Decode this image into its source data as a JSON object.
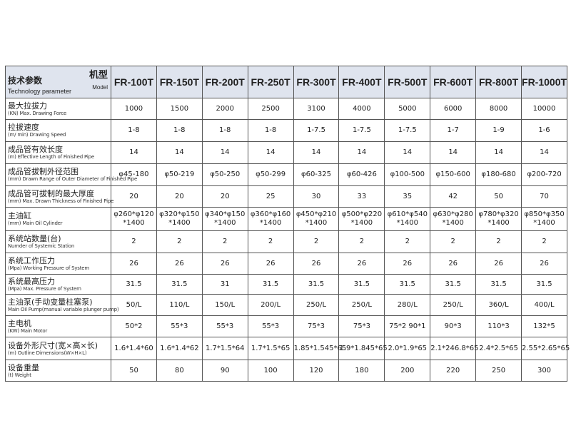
{
  "header": {
    "param_label": "技术参数",
    "param_label_en": "Technology parameter",
    "model_label": "机型",
    "model_label_en": "Model",
    "models": [
      "FR-100T",
      "FR-150T",
      "FR-200T",
      "FR-250T",
      "FR-300T",
      "FR-400T",
      "FR-500T",
      "FR-600T",
      "FR-800T",
      "FR-1000T"
    ]
  },
  "rows": [
    {
      "label": "最大拉拔力",
      "label_en": "(KN) Max. Drawing Force",
      "values": [
        "1000",
        "1500",
        "2000",
        "2500",
        "3100",
        "4000",
        "5000",
        "6000",
        "8000",
        "10000"
      ]
    },
    {
      "label": "拉拔速度",
      "label_en": "(m/ min) Drawing Speed",
      "values": [
        "1-8",
        "1-8",
        "1-8",
        "1-8",
        "1-7.5",
        "1-7.5",
        "1-7.5",
        "1-7",
        "1-9",
        "1-6"
      ]
    },
    {
      "label": "成品管有效长度",
      "label_en": "(m) Effective Length of Finished Pipe",
      "values": [
        "14",
        "14",
        "14",
        "14",
        "14",
        "14",
        "14",
        "14",
        "14",
        "14"
      ]
    },
    {
      "label": "成品管拔制外径范围",
      "label_en": "(mm) Drawn Range of Outer Diameter of Finished Pipe",
      "values": [
        "φ45-180",
        "φ50-219",
        "φ50-250",
        "φ50-299",
        "φ60-325",
        "φ60-426",
        "φ100-500",
        "φ150-600",
        "φ180-680",
        "φ200-720"
      ]
    },
    {
      "label": "成品管可拔制的最大厚度",
      "label_en": "(mm) Max. Drawn Thickness of Finished Pipe",
      "values": [
        "20",
        "20",
        "20",
        "25",
        "30",
        "33",
        "35",
        "42",
        "50",
        "70"
      ]
    },
    {
      "label": "主油缸",
      "label_en": "(mm) Main Oil Cylinder",
      "values": [
        [
          "φ260*φ120",
          "*1400"
        ],
        [
          "φ320*φ150",
          "*1400"
        ],
        [
          "φ340*φ150",
          "*1400"
        ],
        [
          "φ360*φ160",
          "*1400"
        ],
        [
          "φ450*φ210",
          "*1400"
        ],
        [
          "φ500*φ220",
          "*1400"
        ],
        [
          "φ610*φ540",
          "*1400"
        ],
        [
          "φ630*φ280",
          "*1400"
        ],
        [
          "φ780*φ320",
          "*1400"
        ],
        [
          "φ850*φ350",
          "*1400"
        ]
      ]
    },
    {
      "label": "系统站数量(台)",
      "label_en": "Numder of Systemic Station",
      "values": [
        "2",
        "2",
        "2",
        "2",
        "2",
        "2",
        "2",
        "2",
        "2",
        "2"
      ]
    },
    {
      "label": "系统工作压力",
      "label_en": "(Mpa) Working Pressure of System",
      "values": [
        "26",
        "26",
        "26",
        "26",
        "26",
        "26",
        "26",
        "26",
        "26",
        "26"
      ]
    },
    {
      "label": "系统最高压力",
      "label_en": "(Mpa) Max. Pressure of System",
      "values": [
        "31.5",
        "31.5",
        "31",
        "31.5",
        "31.5",
        "31.5",
        "31.5",
        "31.5",
        "31.5",
        "31.5"
      ]
    },
    {
      "label": "主油泵(手动变量柱塞泵)",
      "label_en": "Main Oil Pump(manual variable plunger pump)",
      "values": [
        "50/L",
        "110/L",
        "150/L",
        "200/L",
        "250/L",
        "250/L",
        "280/L",
        "250/L",
        "360/L",
        "400/L"
      ]
    },
    {
      "label": "主电机",
      "label_en": "(KW) Main Motor",
      "values": [
        "50*2",
        "55*3",
        "55*3",
        "55*3",
        "75*3",
        "75*3",
        "75*2 90*1",
        "90*3",
        "110*3",
        "132*5"
      ]
    },
    {
      "label": "设备外形尺寸(宽×高×长)",
      "label_en": "(m) Outline Dimensions(W×H×L)",
      "values": [
        "1.6*1.4*60",
        "1.6*1.4*62",
        "1.7*1.5*64",
        "1.7*1.5*65",
        "1.85*1.545*65",
        "1.9*1.845*65",
        "2.0*1.9*65",
        "2.1*246.8*65",
        "2.4*2.5*65",
        "2.55*2.65*65"
      ]
    },
    {
      "label": "设备重量",
      "label_en": "(t) Weight",
      "values": [
        "50",
        "80",
        "90",
        "100",
        "120",
        "180",
        "200",
        "220",
        "250",
        "300"
      ]
    }
  ]
}
